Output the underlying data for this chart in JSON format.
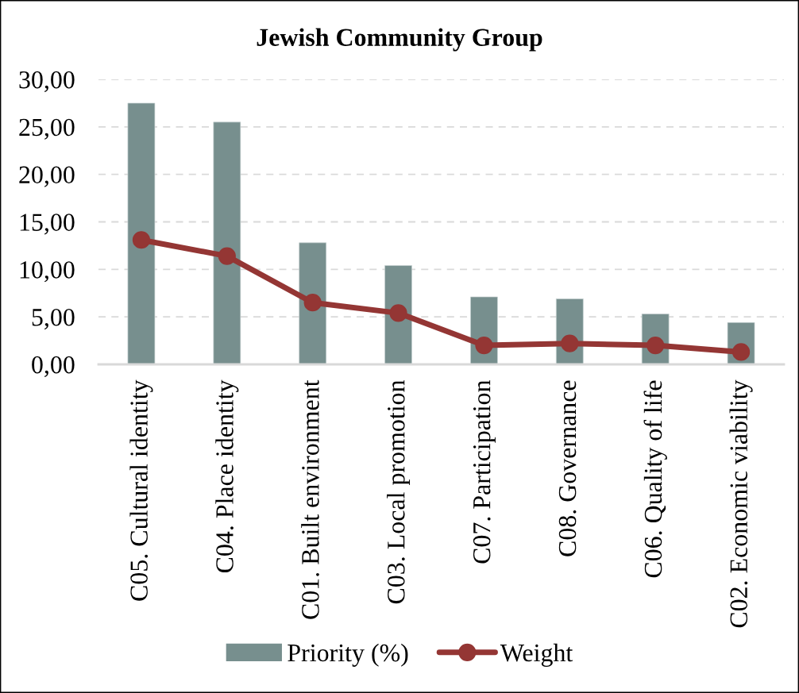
{
  "chart_data": {
    "type": "bar",
    "title": "Jewish Community Group",
    "categories": [
      "C05. Cultural identity",
      "C04. Place identity",
      "C01. Built environment",
      "C03. Local promotion",
      "C07. Participation",
      "C08. Governance",
      "C06. Quality of life",
      "C02. Economic viability"
    ],
    "series": [
      {
        "name": "Priority (%)",
        "color": "#778f8e",
        "values": [
          27.5,
          25.5,
          12.8,
          10.4,
          7.1,
          6.9,
          5.3,
          4.4
        ]
      },
      {
        "name": "Weight",
        "type": "line",
        "color": "#943634",
        "values": [
          13.1,
          11.4,
          6.5,
          5.4,
          2.0,
          2.2,
          2.0,
          1.3
        ]
      }
    ],
    "ylim": [
      0,
      30
    ],
    "yticks": [
      {
        "value": 0,
        "label": "0,00"
      },
      {
        "value": 5,
        "label": "5,00"
      },
      {
        "value": 10,
        "label": "10,00"
      },
      {
        "value": 15,
        "label": "15,00"
      },
      {
        "value": 20,
        "label": "20,00"
      },
      {
        "value": 25,
        "label": "25,00"
      },
      {
        "value": 30,
        "label": "30,00"
      }
    ],
    "grid": "y",
    "legend": "bottom",
    "marker": "circle",
    "line_style": "solid"
  }
}
